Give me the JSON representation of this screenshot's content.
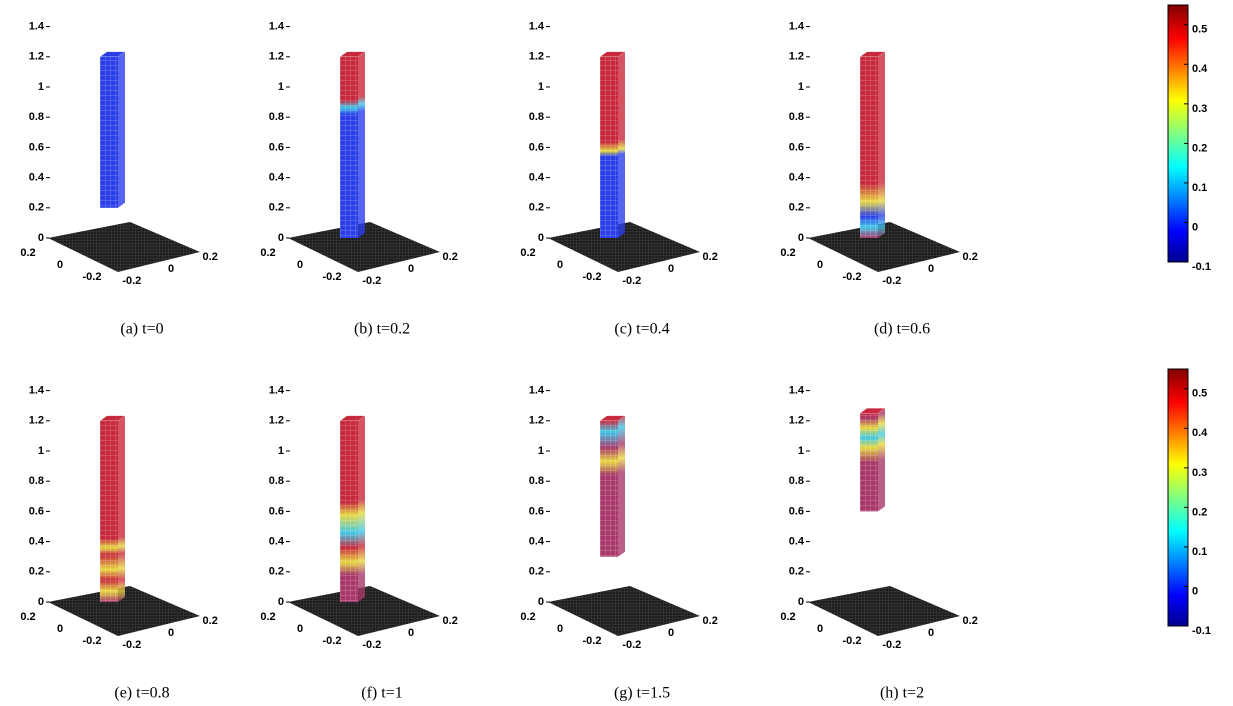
{
  "panels": [
    {
      "caption": "(a) t=0",
      "zticks": [
        0,
        0.2,
        0.4,
        0.6,
        0.8,
        1,
        1.2,
        1.4
      ],
      "yticks": [
        0.2,
        0,
        -0.2
      ],
      "xticks": [
        -0.2,
        0,
        0.2
      ],
      "column": {
        "bottom": 0.2,
        "top": 1.2
      }
    },
    {
      "caption": "(b) t=0.2",
      "zticks": [
        0,
        0.2,
        0.4,
        0.6,
        0.8,
        1,
        1.2,
        1.4
      ],
      "yticks": [
        0.2,
        0,
        -0.2
      ],
      "xticks": [
        -0.2,
        0,
        0.2
      ],
      "column": {
        "bottom": 0,
        "top": 1.2
      }
    },
    {
      "caption": "(c) t=0.4",
      "zticks": [
        0,
        0.2,
        0.4,
        0.6,
        0.8,
        1,
        1.2,
        1.4
      ],
      "yticks": [
        0.2,
        0,
        -0.2
      ],
      "xticks": [
        -0.2,
        0,
        0.2
      ],
      "column": {
        "bottom": 0,
        "top": 1.2
      }
    },
    {
      "caption": "(d) t=0.6",
      "zticks": [
        0,
        0.2,
        0.4,
        0.6,
        0.8,
        1,
        1.2,
        1.4
      ],
      "yticks": [
        0.2,
        0,
        -0.2
      ],
      "xticks": [
        -0.2,
        0,
        0.2
      ],
      "column": {
        "bottom": 0,
        "top": 1.2
      }
    },
    {
      "caption": "(e) t=0.8",
      "zticks": [
        0,
        0.2,
        0.4,
        0.6,
        0.8,
        1,
        1.2,
        1.4
      ],
      "yticks": [
        0.2,
        0,
        -0.2
      ],
      "xticks": [
        -0.2,
        0,
        0.2
      ],
      "column": {
        "bottom": 0,
        "top": 1.2
      }
    },
    {
      "caption": "(f) t=1",
      "zticks": [
        0,
        0.2,
        0.4,
        0.6,
        0.8,
        1,
        1.2,
        1.4
      ],
      "yticks": [
        0.2,
        0,
        -0.2
      ],
      "xticks": [
        -0.2,
        0,
        0.2
      ],
      "column": {
        "bottom": 0,
        "top": 1.2
      }
    },
    {
      "caption": "(g) t=1.5",
      "zticks": [
        0,
        0.2,
        0.4,
        0.6,
        0.8,
        1,
        1.2,
        1.4
      ],
      "yticks": [
        0.2,
        0,
        -0.2
      ],
      "xticks": [
        -0.2,
        0,
        0.2
      ],
      "column": {
        "bottom": 0.3,
        "top": 1.2
      }
    },
    {
      "caption": "(h) t=2",
      "zticks": [
        0,
        0.2,
        0.4,
        0.6,
        0.8,
        1,
        1.2,
        1.4
      ],
      "yticks": [
        0.2,
        0,
        -0.2
      ],
      "xticks": [
        -0.2,
        0,
        0.2
      ],
      "column": {
        "bottom": 0.6,
        "top": 1.25
      }
    }
  ],
  "colorbars": [
    {
      "lim": [
        -0.1,
        0.55
      ],
      "ticks": [
        -0.1,
        0,
        0.1,
        0.2,
        0.3,
        0.4,
        0.5
      ]
    },
    {
      "lim": [
        -0.1,
        0.55
      ],
      "ticks": [
        -0.1,
        0,
        0.1,
        0.2,
        0.3,
        0.4,
        0.5
      ]
    }
  ]
}
